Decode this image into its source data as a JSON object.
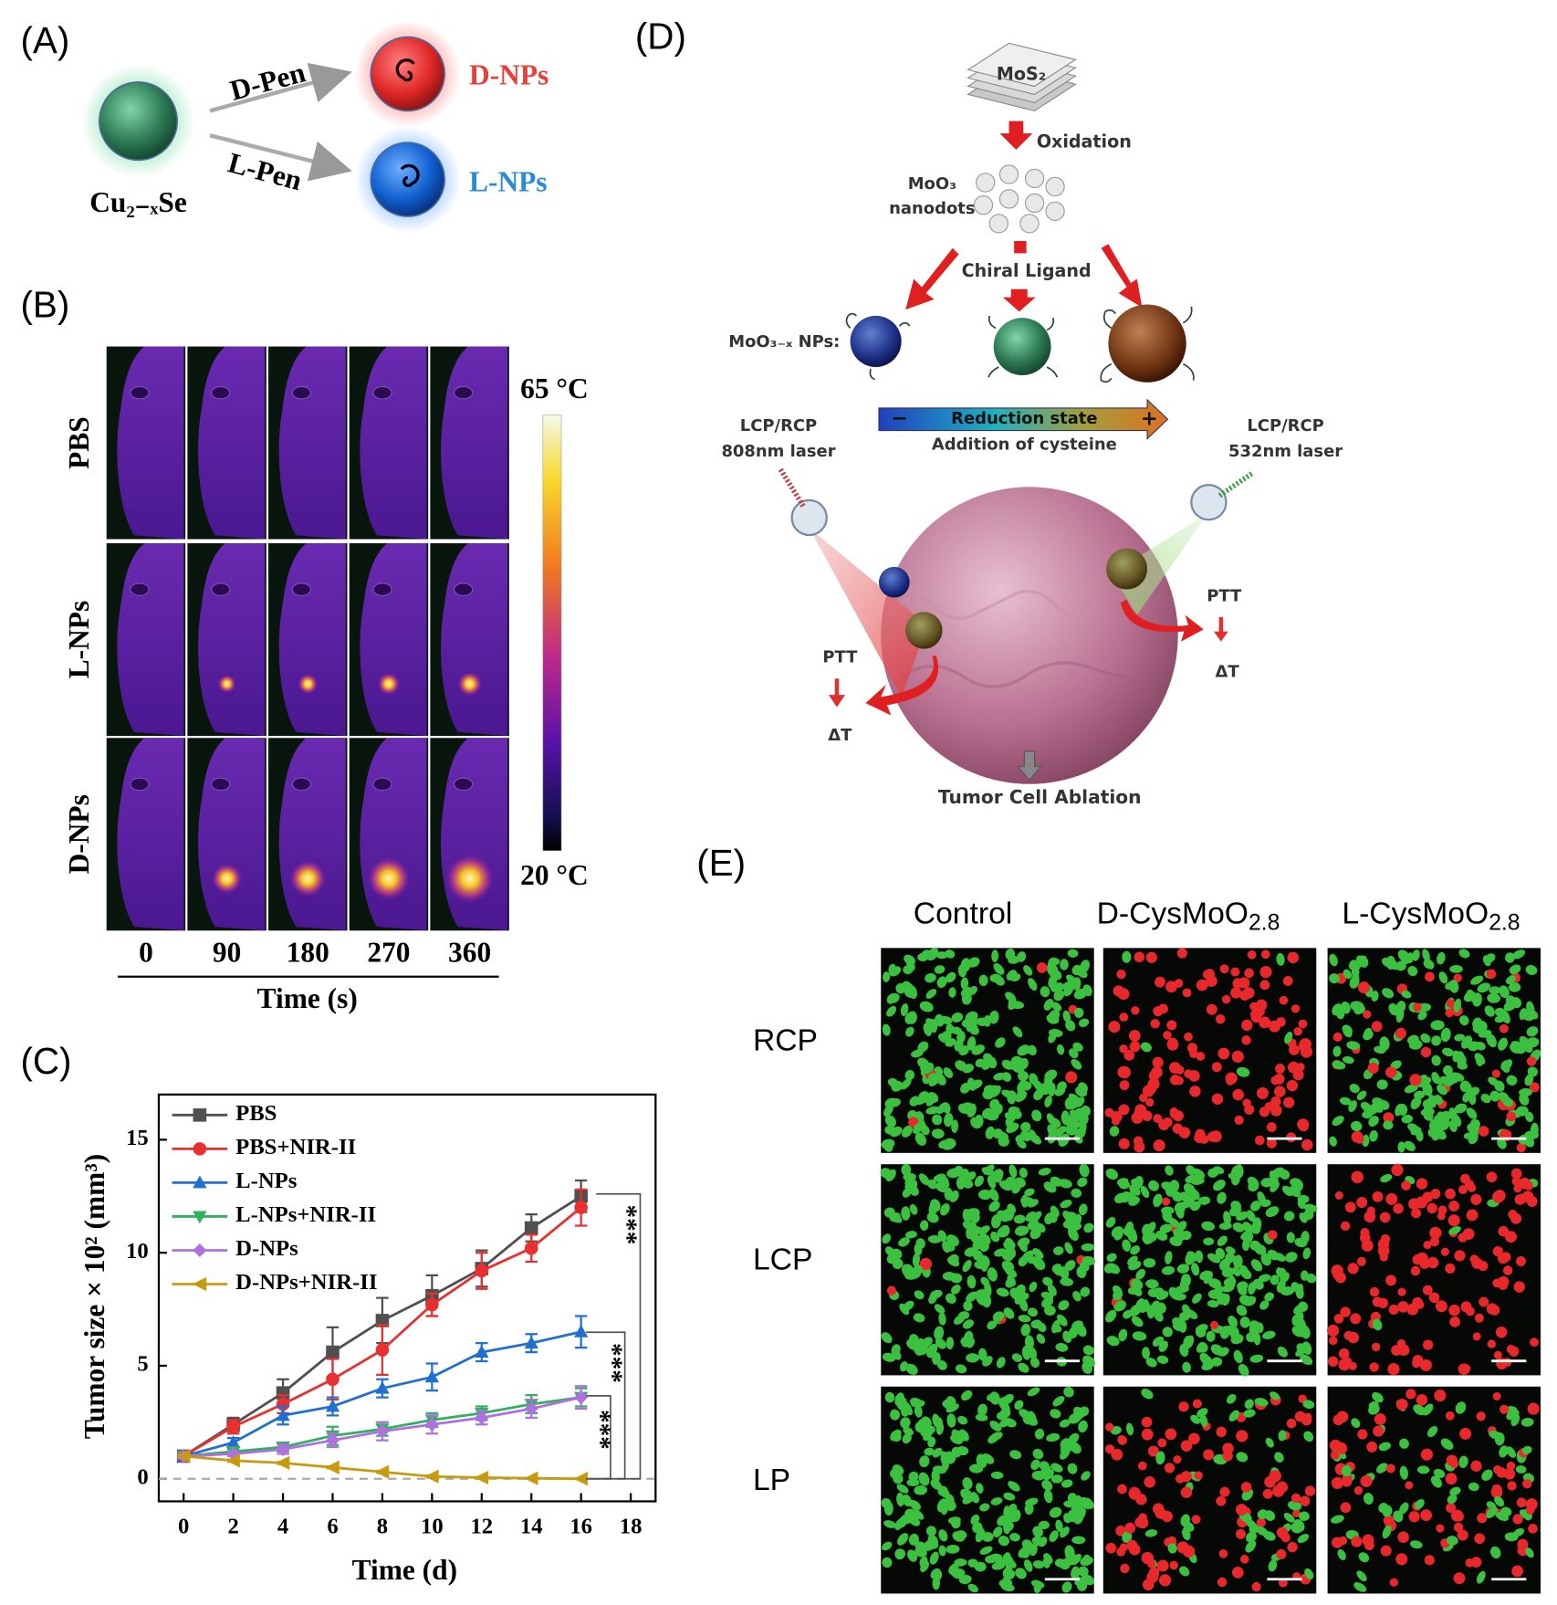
{
  "panel_a": {
    "label": "(A)",
    "source": "Cu₂₋ₓSe",
    "ligands": [
      "D-Pen",
      "L-Pen"
    ],
    "products": [
      "D-NPs",
      "L-NPs"
    ]
  },
  "panel_b": {
    "label": "(B)",
    "rows": [
      "PBS",
      "L-NPs",
      "D-NPs"
    ],
    "times": [
      0,
      90,
      180,
      270,
      360
    ],
    "x_label": "Time (s)",
    "colorbar": {
      "max_label": "65 °C",
      "min_label": "20 °C"
    }
  },
  "chart_data": {
    "type": "line",
    "panel_label": "(C)",
    "x_label": "Time (d)",
    "y_label": "Tumor size × 10² (mm³)",
    "x": [
      0,
      2,
      4,
      6,
      8,
      10,
      12,
      14,
      16
    ],
    "xlim": [
      -1,
      19
    ],
    "xticks": [
      0,
      2,
      4,
      6,
      8,
      10,
      12,
      14,
      16,
      18
    ],
    "ylim": [
      -1,
      17
    ],
    "yticks": [
      0,
      5,
      10,
      15
    ],
    "hline": 0,
    "legend": "upper left",
    "annotations": [
      "***",
      "***",
      "***"
    ],
    "series": [
      {
        "name": "PBS",
        "color": "#505050",
        "values": [
          1,
          2.4,
          3.8,
          5.6,
          7,
          8.1,
          9.3,
          11.1,
          12.5
        ],
        "errors": [
          0.1,
          0.3,
          0.6,
          1.1,
          1,
          0.9,
          0.8,
          0.6,
          0.7
        ]
      },
      {
        "name": "PBS+NIR-II",
        "color": "#e83030",
        "values": [
          1,
          2.3,
          3.3,
          4.4,
          5.7,
          7.7,
          9.2,
          10.2,
          12
        ],
        "errors": [
          0.1,
          0.3,
          0.4,
          0.9,
          1.1,
          0.5,
          0.8,
          0.6,
          0.8
        ]
      },
      {
        "name": "L-NPs",
        "color": "#2070d0",
        "values": [
          1,
          1.6,
          2.8,
          3.2,
          4,
          4.5,
          5.6,
          6,
          6.5
        ],
        "errors": [
          0.1,
          0.2,
          0.4,
          0.4,
          0.4,
          0.6,
          0.4,
          0.4,
          0.7
        ]
      },
      {
        "name": "L-NPs+NIR-II",
        "color": "#30b060",
        "values": [
          1,
          1.2,
          1.4,
          1.9,
          2.2,
          2.6,
          2.9,
          3.3,
          3.6
        ],
        "errors": [
          0.1,
          0.1,
          0.2,
          0.4,
          0.3,
          0.3,
          0.3,
          0.4,
          0.4
        ]
      },
      {
        "name": "D-NPs",
        "color": "#b070e0",
        "values": [
          1,
          1.1,
          1.3,
          1.7,
          2.1,
          2.4,
          2.7,
          3.1,
          3.6
        ],
        "errors": [
          0.1,
          0.1,
          0.2,
          0.3,
          0.4,
          0.4,
          0.3,
          0.4,
          0.5
        ]
      },
      {
        "name": "D-NPs+NIR-II",
        "color": "#c89a10",
        "values": [
          1,
          0.8,
          0.7,
          0.5,
          0.3,
          0.1,
          0.05,
          0.02,
          0
        ],
        "errors": [
          0.05,
          0.05,
          0.05,
          0.05,
          0.05,
          0.05,
          0.03,
          0.02,
          0.02
        ]
      }
    ]
  },
  "panel_d": {
    "label": "(D)",
    "precursor": "MoS₂",
    "step1": "Oxidation",
    "intermediate": [
      "MoO₃",
      "nanodots"
    ],
    "step2": "Chiral Ligand",
    "np_label": "MoO₃₋ₓ NPs:",
    "bar": {
      "minus": "−",
      "plus": "+",
      "title": "Reduction state",
      "subtitle": "Addition of cysteine"
    },
    "left_laser": [
      "LCP/RCP",
      "808nm laser"
    ],
    "right_laser": [
      "LCP/RCP",
      "532nm laser"
    ],
    "left_effect": [
      "PTT",
      "ΔT"
    ],
    "right_effect": [
      "PTT",
      "ΔT"
    ],
    "result": "Tumor Cell Ablation"
  },
  "panel_e": {
    "label": "(E)",
    "columns": [
      {
        "text": "Control"
      },
      {
        "text": "D-CysMoO",
        "sub": "2.8"
      },
      {
        "text": "L-CysMoO",
        "sub": "2.8"
      }
    ],
    "rows": [
      "RCP",
      "LCP",
      "LP"
    ]
  }
}
